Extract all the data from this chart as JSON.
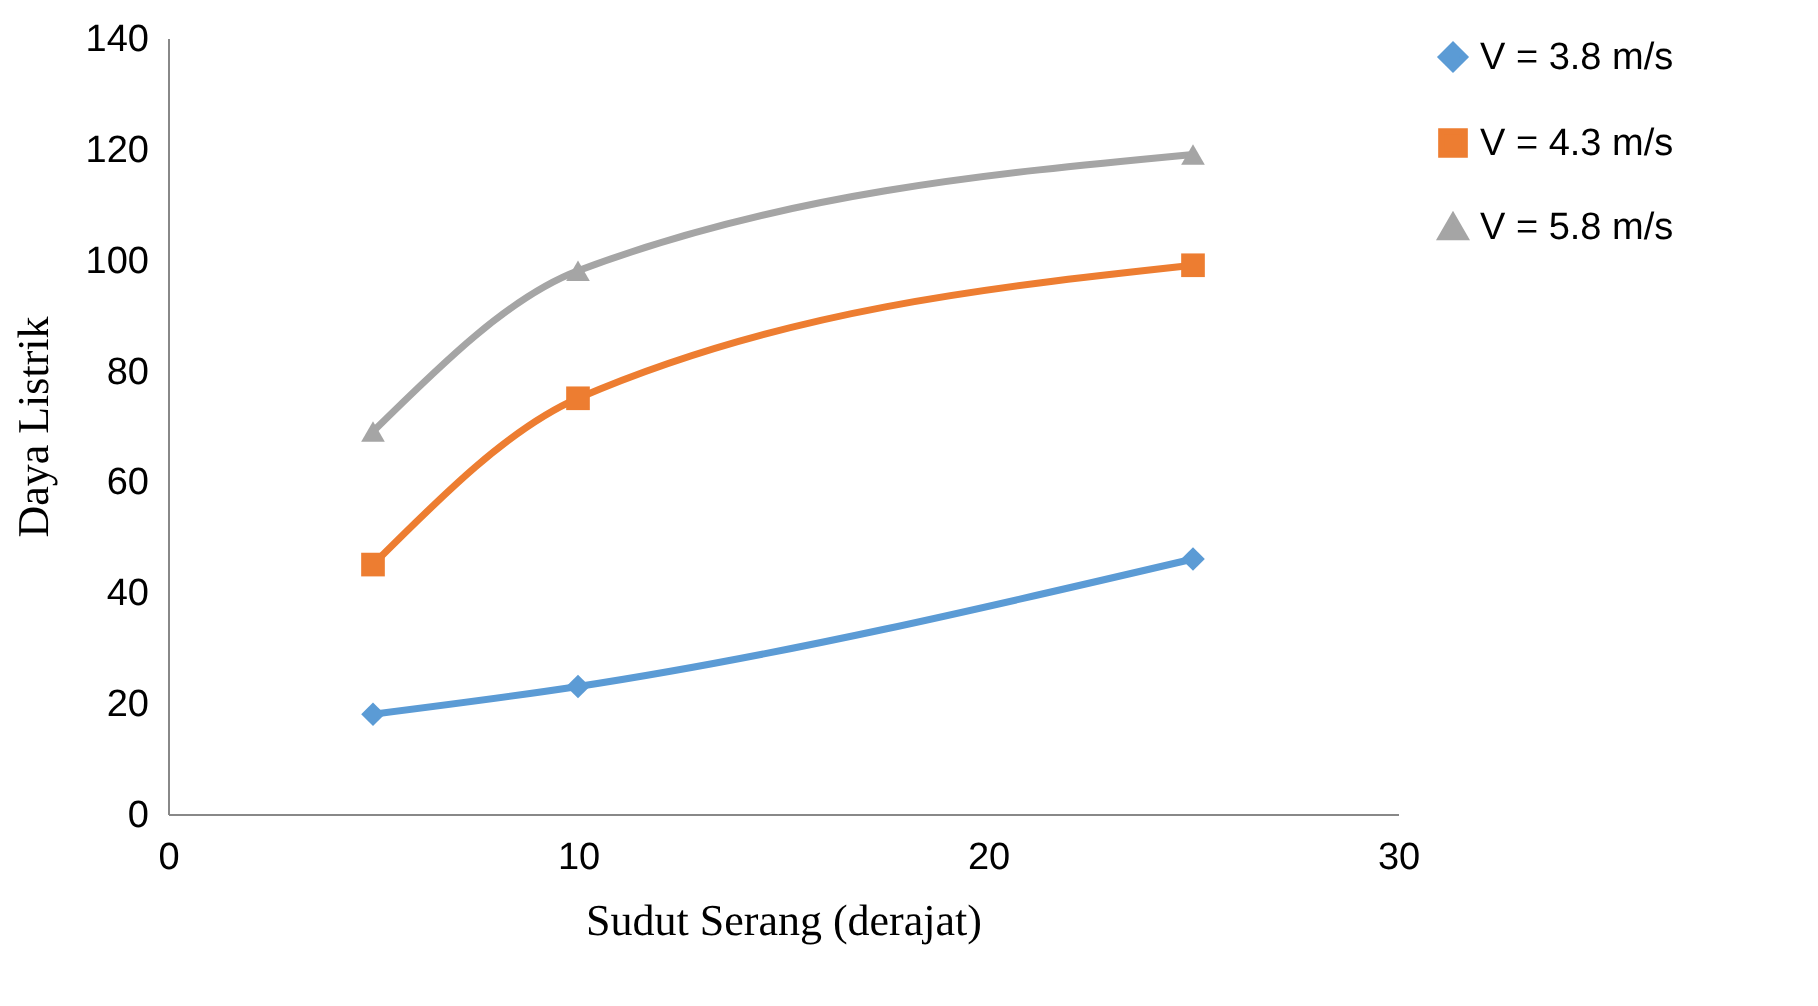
{
  "chart_data": {
    "type": "line",
    "xlabel": "Sudut Serang (derajat)",
    "ylabel": "Daya Listrik",
    "xlim": [
      0,
      30
    ],
    "xticks": [
      0,
      10,
      20,
      30
    ],
    "ylim": [
      0,
      140
    ],
    "yticks": [
      0,
      20,
      40,
      60,
      80,
      100,
      120,
      140
    ],
    "grid": false,
    "legend": "right",
    "line_style": "solid",
    "x": [
      5,
      10,
      25
    ],
    "series": [
      {
        "name": "V = 3.8 m/s",
        "color": "#5b9bd5",
        "marker": "diamond",
        "values": [
          18,
          23,
          46
        ]
      },
      {
        "name": "V = 4.3 m/s",
        "color": "#ed7d31",
        "marker": "square",
        "values": [
          45,
          75,
          99
        ]
      },
      {
        "name": "V = 5.8 m/s",
        "color": "#a5a5a5",
        "marker": "triangle",
        "values": [
          69,
          98,
          119
        ]
      }
    ]
  }
}
